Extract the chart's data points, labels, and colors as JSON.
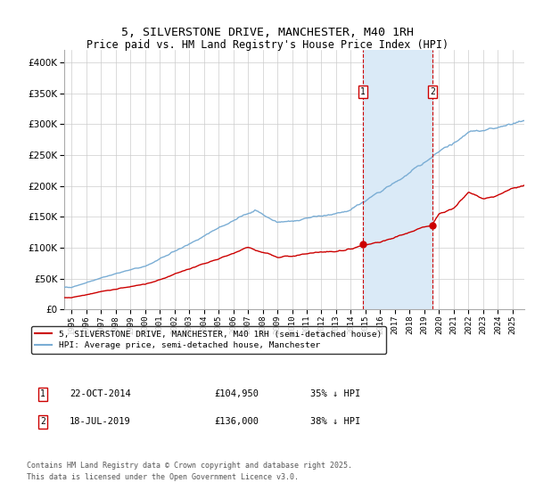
{
  "title": "5, SILVERSTONE DRIVE, MANCHESTER, M40 1RH",
  "subtitle": "Price paid vs. HM Land Registry's House Price Index (HPI)",
  "legend_label_red": "5, SILVERSTONE DRIVE, MANCHESTER, M40 1RH (semi-detached house)",
  "legend_label_blue": "HPI: Average price, semi-detached house, Manchester",
  "marker1_date": "22-OCT-2014",
  "marker1_price": "£104,950",
  "marker1_info": "35% ↓ HPI",
  "marker2_date": "18-JUL-2019",
  "marker2_price": "£136,000",
  "marker2_info": "38% ↓ HPI",
  "footer": "Contains HM Land Registry data © Crown copyright and database right 2025.\nThis data is licensed under the Open Government Licence v3.0.",
  "ylim": [
    0,
    420000
  ],
  "yticks": [
    0,
    50000,
    100000,
    150000,
    200000,
    250000,
    300000,
    350000,
    400000
  ],
  "color_red": "#cc0000",
  "color_blue": "#7aadd4",
  "color_shade": "#daeaf7",
  "color_vline": "#cc0000",
  "marker1_x": 2014.8,
  "marker2_x": 2019.55,
  "dot1_y": 104950,
  "dot2_y": 136000,
  "xmin": 1994.5,
  "xmax": 2025.8
}
